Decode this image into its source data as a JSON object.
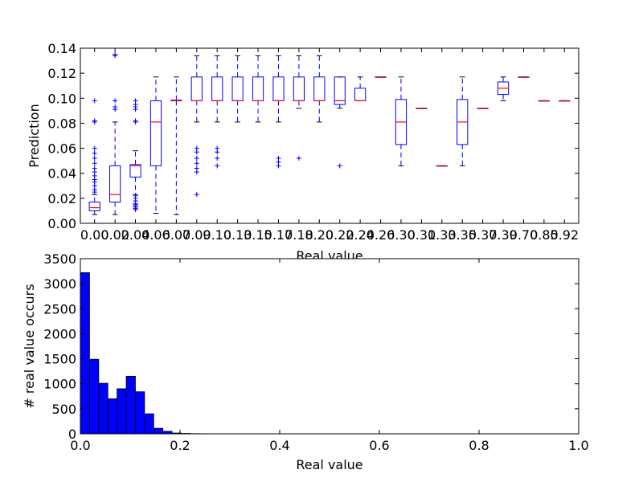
{
  "chart_data": [
    {
      "type": "box",
      "xlabel": "Real value",
      "ylabel": "Prediction",
      "ylim": [
        0,
        0.14
      ],
      "y_ticks": [
        "0.00",
        "0.02",
        "0.04",
        "0.06",
        "0.08",
        "0.10",
        "0.12",
        "0.14"
      ],
      "categories": [
        "0.00",
        "0.02",
        "0.04",
        "0.06",
        "0.07",
        "0.09",
        "0.10",
        "0.13",
        "0.15",
        "0.17",
        "0.18",
        "0.20",
        "0.22",
        "0.24",
        "0.26",
        "0.30",
        "0.31",
        "0.33",
        "0.35",
        "0.37",
        "0.39",
        "0.70",
        "0.85",
        "0.92"
      ],
      "boxes": [
        {
          "whislo": 0.007,
          "q1": 0.01,
          "med": 0.0125,
          "q3": 0.017,
          "whishi": 0.023,
          "fliers": [
            0.025,
            0.027,
            0.03,
            0.033,
            0.035,
            0.038,
            0.041,
            0.044,
            0.048,
            0.052,
            0.056,
            0.06,
            0.081,
            0.082,
            0.098
          ]
        },
        {
          "whislo": 0.007,
          "q1": 0.017,
          "med": 0.023,
          "q3": 0.046,
          "whishi": 0.081,
          "fliers": [
            0.091,
            0.093,
            0.098,
            0.134,
            0.135
          ]
        },
        {
          "whislo": 0.023,
          "q1": 0.037,
          "med": 0.046,
          "q3": 0.047,
          "whishi": 0.058,
          "fliers": [
            0.011,
            0.012,
            0.013,
            0.014,
            0.015,
            0.016,
            0.018,
            0.02,
            0.022,
            0.081,
            0.082,
            0.091,
            0.093,
            0.095,
            0.098
          ]
        },
        {
          "whislo": 0.008,
          "q1": 0.046,
          "med": 0.081,
          "q3": 0.098,
          "whishi": 0.117,
          "fliers": []
        },
        {
          "whislo": 0.007,
          "q1": 0.098,
          "med": 0.098,
          "q3": 0.0985,
          "whishi": 0.117,
          "fliers": []
        },
        {
          "whislo": 0.081,
          "q1": 0.098,
          "med": 0.098,
          "q3": 0.117,
          "whishi": 0.134,
          "fliers": [
            0.023,
            0.041,
            0.044,
            0.048,
            0.052,
            0.057,
            0.06
          ]
        },
        {
          "whislo": 0.081,
          "q1": 0.098,
          "med": 0.098,
          "q3": 0.117,
          "whishi": 0.134,
          "fliers": [
            0.046,
            0.052,
            0.057,
            0.06
          ]
        },
        {
          "whislo": 0.081,
          "q1": 0.098,
          "med": 0.098,
          "q3": 0.117,
          "whishi": 0.134,
          "fliers": []
        },
        {
          "whislo": 0.081,
          "q1": 0.098,
          "med": 0.098,
          "q3": 0.117,
          "whishi": 0.134,
          "fliers": []
        },
        {
          "whislo": 0.081,
          "q1": 0.098,
          "med": 0.098,
          "q3": 0.117,
          "whishi": 0.134,
          "fliers": [
            0.046,
            0.049,
            0.052
          ]
        },
        {
          "whislo": 0.092,
          "q1": 0.098,
          "med": 0.098,
          "q3": 0.117,
          "whishi": 0.134,
          "fliers": [
            0.052
          ]
        },
        {
          "whislo": 0.081,
          "q1": 0.098,
          "med": 0.098,
          "q3": 0.117,
          "whishi": 0.134,
          "fliers": []
        },
        {
          "whislo": 0.092,
          "q1": 0.095,
          "med": 0.098,
          "q3": 0.117,
          "whishi": 0.117,
          "fliers": [
            0.046
          ]
        },
        {
          "whislo": 0.098,
          "q1": 0.098,
          "med": 0.098,
          "q3": 0.108,
          "whishi": 0.117,
          "fliers": []
        },
        {
          "whislo": 0.117,
          "q1": 0.117,
          "med": 0.117,
          "q3": 0.117,
          "whishi": 0.117,
          "fliers": []
        },
        {
          "whislo": 0.046,
          "q1": 0.063,
          "med": 0.081,
          "q3": 0.099,
          "whishi": 0.117,
          "fliers": []
        },
        {
          "whislo": 0.092,
          "q1": 0.092,
          "med": 0.092,
          "q3": 0.092,
          "whishi": 0.092,
          "fliers": []
        },
        {
          "whislo": 0.046,
          "q1": 0.046,
          "med": 0.046,
          "q3": 0.046,
          "whishi": 0.046,
          "fliers": []
        },
        {
          "whislo": 0.046,
          "q1": 0.063,
          "med": 0.081,
          "q3": 0.099,
          "whishi": 0.117,
          "fliers": []
        },
        {
          "whislo": 0.092,
          "q1": 0.092,
          "med": 0.092,
          "q3": 0.092,
          "whishi": 0.092,
          "fliers": []
        },
        {
          "whislo": 0.098,
          "q1": 0.103,
          "med": 0.108,
          "q3": 0.113,
          "whishi": 0.117,
          "fliers": []
        },
        {
          "whislo": 0.117,
          "q1": 0.117,
          "med": 0.117,
          "q3": 0.117,
          "whishi": 0.117,
          "fliers": []
        },
        {
          "whislo": 0.098,
          "q1": 0.098,
          "med": 0.098,
          "q3": 0.098,
          "whishi": 0.098,
          "fliers": []
        },
        {
          "whislo": 0.098,
          "q1": 0.098,
          "med": 0.098,
          "q3": 0.098,
          "whishi": 0.098,
          "fliers": []
        }
      ],
      "colors": {
        "box": "#0000ff",
        "median": "#ff0000",
        "whisker": "#0000ff",
        "flier": "#0000ff",
        "axis": "#000000"
      }
    },
    {
      "type": "histogram",
      "xlabel": "Real value",
      "ylabel": "# real value occurs",
      "xlim": [
        0,
        1.0
      ],
      "ylim": [
        0,
        3500
      ],
      "x_ticks": [
        "0.0",
        "0.2",
        "0.4",
        "0.6",
        "0.8",
        "1.0"
      ],
      "y_ticks": [
        "0",
        "500",
        "1000",
        "1500",
        "2000",
        "2500",
        "3000",
        "3500"
      ],
      "bin_width": 0.0184,
      "bin_start": 0.0,
      "counts": [
        3220,
        1490,
        1010,
        700,
        900,
        1150,
        840,
        400,
        110,
        50,
        15,
        8,
        3,
        2,
        1,
        1,
        1,
        1,
        1,
        1,
        1,
        1,
        1,
        1,
        1,
        0,
        0,
        0,
        0,
        0,
        0,
        0,
        0,
        0,
        0,
        0,
        0,
        0,
        0,
        0,
        0,
        0,
        0,
        0,
        0,
        0,
        0,
        0,
        0,
        0
      ],
      "colors": {
        "bar": "#0000ff",
        "edge": "#000000",
        "axis": "#000000"
      }
    }
  ]
}
